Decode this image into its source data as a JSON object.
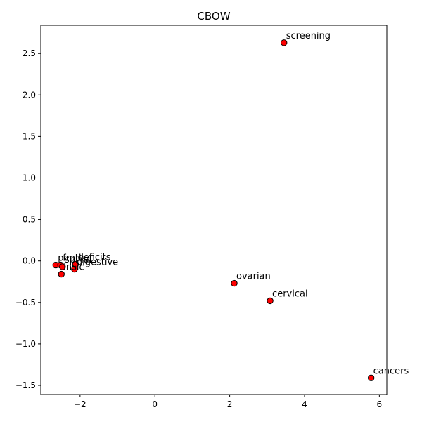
{
  "chart_data": {
    "type": "scatter",
    "title": "CBOW",
    "xlabel": "",
    "ylabel": "",
    "xlim": [
      -3.05,
      6.2
    ],
    "ylim": [
      -1.61,
      2.84
    ],
    "grid": false,
    "xticks": [
      {
        "value": -2,
        "label": "−2"
      },
      {
        "value": 0,
        "label": "0"
      },
      {
        "value": 2,
        "label": "2"
      },
      {
        "value": 4,
        "label": "4"
      },
      {
        "value": 6,
        "label": "6"
      }
    ],
    "yticks": [
      {
        "value": -1.5,
        "label": "−1.5"
      },
      {
        "value": -1.0,
        "label": "−1.0"
      },
      {
        "value": -0.5,
        "label": "−0.5"
      },
      {
        "value": 0.0,
        "label": "0.0"
      },
      {
        "value": 0.5,
        "label": "0.5"
      },
      {
        "value": 1.0,
        "label": "1.0"
      },
      {
        "value": 1.5,
        "label": "1.5"
      },
      {
        "value": 2.0,
        "label": "2.0"
      },
      {
        "value": 2.5,
        "label": "2.5"
      }
    ],
    "marker_color": "#ff0000",
    "marker_edge_color": "#000000",
    "points": [
      {
        "label": "screening",
        "x": 3.45,
        "y": 2.63
      },
      {
        "label": "peptic",
        "x": -2.65,
        "y": -0.05
      },
      {
        "label": "frank",
        "x": -2.52,
        "y": -0.05
      },
      {
        "label": "spinal",
        "x": -2.47,
        "y": -0.07
      },
      {
        "label": "deficits",
        "x": -2.12,
        "y": -0.04
      },
      {
        "label": "digestive",
        "x": -2.15,
        "y": -0.1
      },
      {
        "label": "insic",
        "x": -2.5,
        "y": -0.16
      },
      {
        "label": "ovarian",
        "x": 2.12,
        "y": -0.27
      },
      {
        "label": "cervical",
        "x": 3.08,
        "y": -0.48
      },
      {
        "label": "cancers",
        "x": 5.78,
        "y": -1.41
      }
    ]
  }
}
